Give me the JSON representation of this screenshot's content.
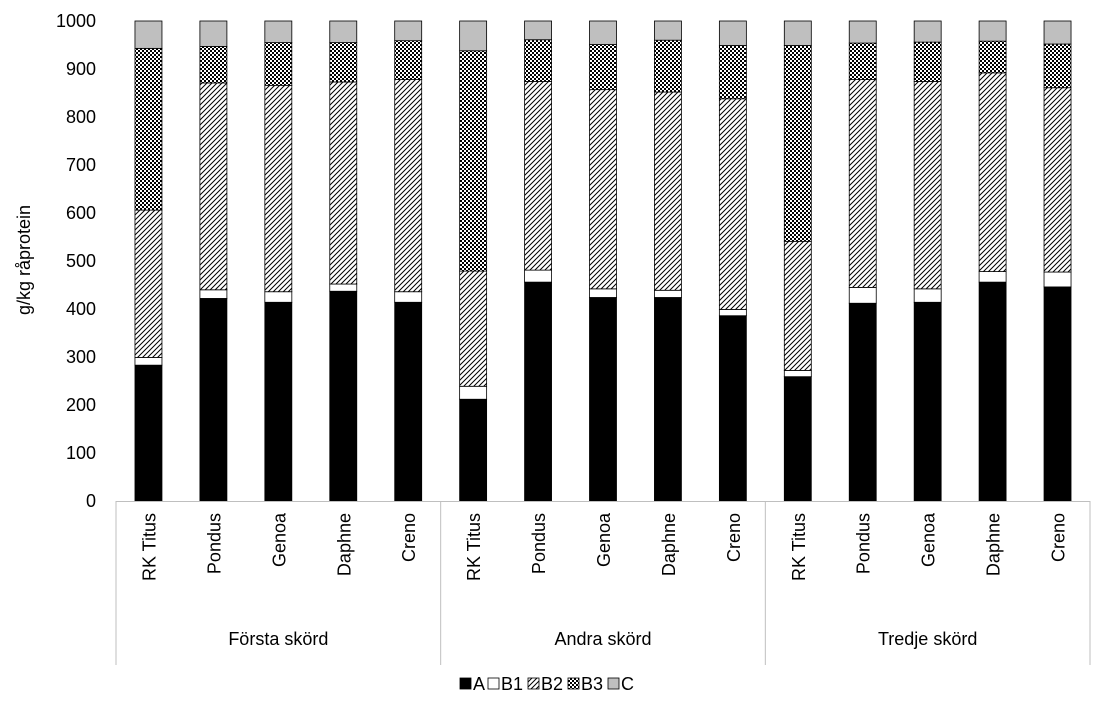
{
  "chart_data": {
    "type": "bar",
    "stacked": true,
    "ylabel": "g/kg råprotein",
    "ylim": [
      0,
      1000
    ],
    "yticks": [
      0,
      100,
      200,
      300,
      400,
      500,
      600,
      700,
      800,
      900,
      1000
    ],
    "grid": false,
    "legend_position": "bottom",
    "groups": [
      "Första skörd",
      "Andra skörd",
      "Tredje skörd"
    ],
    "categories": [
      "RK Titus",
      "Pondus",
      "Genoa",
      "Daphne",
      "Creno",
      "RK Titus",
      "Pondus",
      "Genoa",
      "Daphne",
      "Creno",
      "RK Titus",
      "Pondus",
      "Genoa",
      "Daphne",
      "Creno"
    ],
    "series": [
      {
        "name": "A",
        "pattern": "solid-black",
        "values": [
          283,
          422,
          414,
          437,
          414,
          212,
          456,
          424,
          424,
          386,
          259,
          412,
          414,
          456,
          446
        ]
      },
      {
        "name": "B1",
        "pattern": "white",
        "values": [
          16,
          18,
          22,
          15,
          22,
          27,
          25,
          18,
          15,
          13,
          13,
          33,
          28,
          22,
          31
        ]
      },
      {
        "name": "B2",
        "pattern": "diagonal",
        "values": [
          307,
          431,
          430,
          421,
          442,
          240,
          393,
          415,
          413,
          439,
          269,
          433,
          432,
          414,
          384
        ]
      },
      {
        "name": "B3",
        "pattern": "crosshatch",
        "values": [
          337,
          76,
          89,
          82,
          81,
          459,
          87,
          94,
          108,
          111,
          408,
          76,
          82,
          66,
          91
        ]
      },
      {
        "name": "C",
        "pattern": "gray",
        "values": [
          57,
          53,
          45,
          45,
          41,
          62,
          39,
          49,
          40,
          51,
          51,
          46,
          44,
          42,
          48
        ]
      }
    ]
  }
}
